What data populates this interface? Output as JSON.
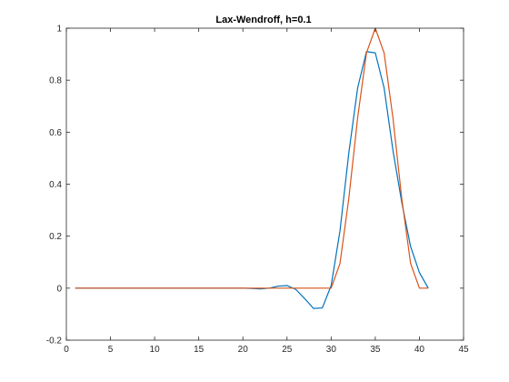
{
  "chart_data": {
    "type": "line",
    "title": "Lax-Wendroff, h=0.1",
    "xlabel": "",
    "ylabel": "",
    "xlim": [
      0,
      45
    ],
    "ylim": [
      -0.2,
      1
    ],
    "xticks": [
      0,
      5,
      10,
      15,
      20,
      25,
      30,
      35,
      40,
      45
    ],
    "yticks": [
      -0.2,
      0,
      0.2,
      0.4,
      0.6,
      0.8,
      1
    ],
    "xtick_labels": [
      "0",
      "5",
      "10",
      "15",
      "20",
      "25",
      "30",
      "35",
      "40",
      "45"
    ],
    "ytick_labels": [
      "-0.2",
      "0",
      "0.2",
      "0.4",
      "0.6",
      "0.8",
      "1"
    ],
    "grid": false,
    "legend": "none",
    "series": [
      {
        "color": "#0072BD",
        "x": [
          1,
          2,
          3,
          4,
          5,
          6,
          7,
          8,
          9,
          10,
          11,
          12,
          13,
          14,
          15,
          16,
          17,
          18,
          19,
          20,
          21,
          22,
          23,
          24,
          25,
          26,
          27,
          28,
          29,
          30,
          31,
          32,
          33,
          34,
          35,
          36,
          37,
          38,
          39,
          40,
          41
        ],
        "y": [
          0,
          0,
          0,
          0,
          0,
          0,
          0,
          0,
          0,
          0,
          0,
          0,
          0,
          0,
          0,
          0,
          0,
          0,
          0,
          0,
          -0.001,
          -0.003,
          0,
          0.008,
          0.01,
          -0.005,
          -0.04,
          -0.078,
          -0.076,
          0.01,
          0.22,
          0.52,
          0.77,
          0.91,
          0.905,
          0.77,
          0.53,
          0.33,
          0.16,
          0.06,
          0
        ]
      },
      {
        "color": "#D95319",
        "x": [
          1,
          2,
          3,
          4,
          5,
          6,
          7,
          8,
          9,
          10,
          11,
          12,
          13,
          14,
          15,
          16,
          17,
          18,
          19,
          20,
          21,
          22,
          23,
          24,
          25,
          26,
          27,
          28,
          29,
          30,
          31,
          32,
          33,
          34,
          35,
          36,
          37,
          38,
          39,
          40,
          41
        ],
        "y": [
          0,
          0,
          0,
          0,
          0,
          0,
          0,
          0,
          0,
          0,
          0,
          0,
          0,
          0,
          0,
          0,
          0,
          0,
          0,
          0,
          0,
          0,
          0,
          0,
          0,
          0,
          0,
          0,
          0,
          0,
          0.095,
          0.345,
          0.655,
          0.905,
          1,
          0.905,
          0.655,
          0.345,
          0.095,
          0,
          0
        ]
      }
    ]
  }
}
